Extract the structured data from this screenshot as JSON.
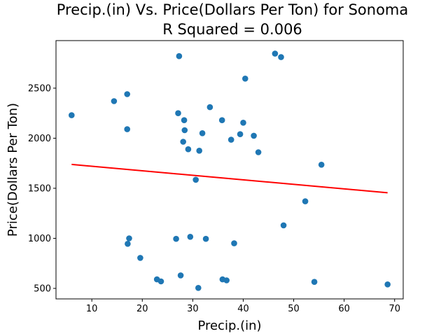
{
  "chart_data": {
    "type": "scatter",
    "title_line1": "Precip.(in) Vs. Price(Dollars Per Ton) for Sonoma",
    "title_line2": "R Squared =  0.006",
    "xlabel": "Precip.(in)",
    "ylabel": "Price(Dollars Per Ton)",
    "xlim": [
      2.9,
      71.7
    ],
    "ylim": [
      395,
      2975
    ],
    "xticks": [
      10,
      20,
      30,
      40,
      50,
      60,
      70
    ],
    "yticks": [
      500,
      1000,
      1500,
      2000,
      2500
    ],
    "grid": false,
    "point_color": "#1f77b4",
    "line_color": "#ff0000",
    "points": [
      [
        6.0,
        2230
      ],
      [
        14.4,
        2370
      ],
      [
        17.0,
        2440
      ],
      [
        17.0,
        2090
      ],
      [
        17.1,
        945
      ],
      [
        17.4,
        1000
      ],
      [
        19.6,
        805
      ],
      [
        22.9,
        590
      ],
      [
        23.7,
        570
      ],
      [
        26.7,
        995
      ],
      [
        27.1,
        2250
      ],
      [
        27.3,
        2820
      ],
      [
        27.6,
        630
      ],
      [
        28.1,
        1965
      ],
      [
        28.3,
        2180
      ],
      [
        28.4,
        2080
      ],
      [
        29.1,
        1890
      ],
      [
        29.5,
        1015
      ],
      [
        30.6,
        1585
      ],
      [
        31.1,
        505
      ],
      [
        31.3,
        1875
      ],
      [
        31.9,
        2050
      ],
      [
        32.6,
        995
      ],
      [
        33.4,
        2310
      ],
      [
        35.8,
        2180
      ],
      [
        35.9,
        590
      ],
      [
        36.7,
        580
      ],
      [
        37.6,
        1985
      ],
      [
        38.2,
        950
      ],
      [
        39.4,
        2040
      ],
      [
        40.0,
        2155
      ],
      [
        40.4,
        2595
      ],
      [
        42.1,
        2025
      ],
      [
        43.0,
        1860
      ],
      [
        46.3,
        2845
      ],
      [
        47.5,
        2810
      ],
      [
        48.0,
        1130
      ],
      [
        52.3,
        1370
      ],
      [
        54.1,
        565
      ],
      [
        55.5,
        1735
      ],
      [
        68.6,
        540
      ]
    ],
    "regression_line": [
      [
        6.0,
        1738
      ],
      [
        68.6,
        1455
      ]
    ]
  }
}
